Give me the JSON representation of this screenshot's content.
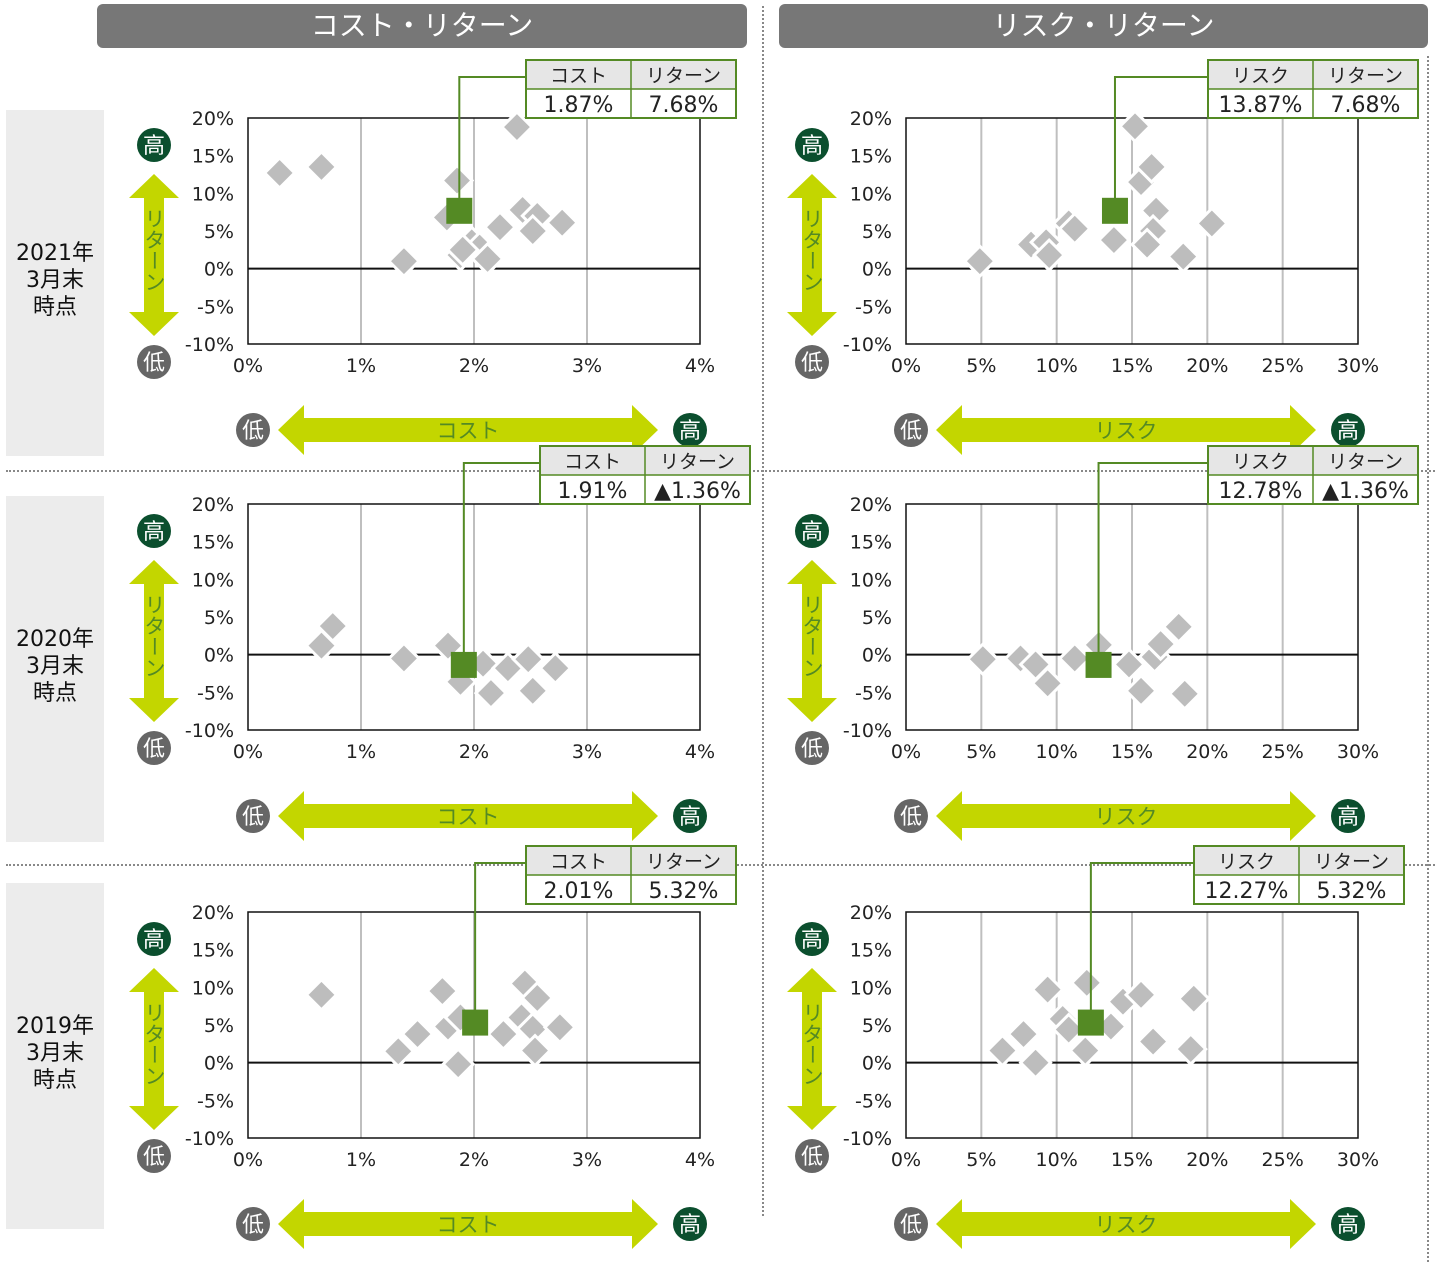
{
  "headers": {
    "cost_return": "コスト・リターン",
    "risk_return": "リスク・リターン"
  },
  "rows": [
    {
      "year": "2021年",
      "month": "3月末",
      "point": "時点"
    },
    {
      "year": "2020年",
      "month": "3月末",
      "point": "時点"
    },
    {
      "year": "2019年",
      "month": "3月末",
      "point": "時点"
    }
  ],
  "labels": {
    "high": "高",
    "low": "低",
    "return_axis": "リターン",
    "cost_axis": "コスト",
    "risk_axis": "リスク",
    "cost_col": "コスト",
    "risk_col": "リスク",
    "return_col": "リターン"
  },
  "colors": {
    "fund": "#548a24",
    "peers": "#bdbdbd",
    "arrow": "#c3d600",
    "badge_high": "#0b4f2e",
    "badge_low": "#666666",
    "grid": "#bfbfbf"
  },
  "y_ticks": [
    "20%",
    "15%",
    "10%",
    "5%",
    "0%",
    "-5%",
    "-10%"
  ],
  "cost_ticks": [
    "0%",
    "1%",
    "2%",
    "3%",
    "4%"
  ],
  "risk_ticks": [
    "0%",
    "5%",
    "10%",
    "15%",
    "20%",
    "25%",
    "30%"
  ],
  "chart_data": [
    {
      "type": "scatter",
      "panel": "cost",
      "row": 0,
      "xlim": [
        0,
        4
      ],
      "ylim": [
        -10,
        20
      ],
      "fund": {
        "x": 1.87,
        "y": 7.68,
        "x_label": "1.87%",
        "y_label": "7.68%"
      },
      "peers": [
        [
          0.28,
          12.7
        ],
        [
          0.65,
          13.5
        ],
        [
          1.85,
          11.7
        ],
        [
          2.38,
          18.8
        ],
        [
          1.76,
          6.8
        ],
        [
          2.23,
          5.5
        ],
        [
          2.43,
          7.8
        ],
        [
          2.56,
          7.0
        ],
        [
          2.78,
          6.1
        ],
        [
          2.52,
          5.0
        ],
        [
          1.38,
          1.0
        ],
        [
          1.88,
          1.8
        ],
        [
          1.98,
          3.5
        ],
        [
          2.05,
          2.8
        ],
        [
          2.12,
          1.3
        ],
        [
          1.9,
          2.5
        ]
      ]
    },
    {
      "type": "scatter",
      "panel": "risk",
      "row": 0,
      "xlim": [
        0,
        30
      ],
      "ylim": [
        -10,
        20
      ],
      "fund": {
        "x": 13.87,
        "y": 7.68,
        "x_label": "13.87%",
        "y_label": "7.68%"
      },
      "peers": [
        [
          4.9,
          1.0
        ],
        [
          8.3,
          3.2
        ],
        [
          9.3,
          3.5
        ],
        [
          9.5,
          1.8
        ],
        [
          10.8,
          6.0
        ],
        [
          11.2,
          5.3
        ],
        [
          13.8,
          3.8
        ],
        [
          15.2,
          18.9
        ],
        [
          15.6,
          11.5
        ],
        [
          16.3,
          13.5
        ],
        [
          16.6,
          7.7
        ],
        [
          16.4,
          5.0
        ],
        [
          16.0,
          3.2
        ],
        [
          18.4,
          1.6
        ],
        [
          20.3,
          6.0
        ]
      ]
    },
    {
      "type": "scatter",
      "panel": "cost",
      "row": 1,
      "xlim": [
        0,
        4
      ],
      "ylim": [
        -10,
        20
      ],
      "fund": {
        "x": 1.91,
        "y": -1.36,
        "x_label": "1.91%",
        "y_label": "▲1.36%"
      },
      "peers": [
        [
          0.65,
          1.2
        ],
        [
          0.75,
          3.8
        ],
        [
          1.38,
          -0.5
        ],
        [
          1.77,
          1.2
        ],
        [
          1.88,
          -3.6
        ],
        [
          2.08,
          -1.2
        ],
        [
          2.15,
          -5.1
        ],
        [
          2.3,
          -1.8
        ],
        [
          2.48,
          -0.6
        ],
        [
          2.52,
          -4.8
        ],
        [
          2.72,
          -1.8
        ]
      ]
    },
    {
      "type": "scatter",
      "panel": "risk",
      "row": 1,
      "xlim": [
        0,
        30
      ],
      "ylim": [
        -10,
        20
      ],
      "fund": {
        "x": 12.78,
        "y": -1.36,
        "x_label": "12.78%",
        "y_label": "▲1.36%"
      },
      "peers": [
        [
          5.1,
          -0.6
        ],
        [
          7.6,
          -0.5
        ],
        [
          8.6,
          -1.3
        ],
        [
          9.4,
          -3.8
        ],
        [
          11.2,
          -0.5
        ],
        [
          12.8,
          1.3
        ],
        [
          14.8,
          -1.3
        ],
        [
          15.6,
          -4.8
        ],
        [
          16.5,
          -0.3
        ],
        [
          16.9,
          1.4
        ],
        [
          18.1,
          3.7
        ],
        [
          18.5,
          -5.2
        ]
      ]
    },
    {
      "type": "scatter",
      "panel": "cost",
      "row": 2,
      "xlim": [
        0,
        4
      ],
      "ylim": [
        -10,
        20
      ],
      "fund": {
        "x": 2.01,
        "y": 5.32,
        "x_label": "2.01%",
        "y_label": "5.32%"
      },
      "peers": [
        [
          0.65,
          9.0
        ],
        [
          1.33,
          1.5
        ],
        [
          1.5,
          3.8
        ],
        [
          1.72,
          9.5
        ],
        [
          1.77,
          4.8
        ],
        [
          1.86,
          -0.2
        ],
        [
          1.88,
          6.0
        ],
        [
          2.26,
          3.8
        ],
        [
          2.42,
          6.0
        ],
        [
          2.45,
          10.5
        ],
        [
          2.56,
          8.6
        ],
        [
          2.52,
          4.5
        ],
        [
          2.54,
          1.6
        ],
        [
          2.76,
          4.7
        ]
      ]
    },
    {
      "type": "scatter",
      "panel": "risk",
      "row": 2,
      "xlim": [
        0,
        30
      ],
      "ylim": [
        -10,
        20
      ],
      "fund": {
        "x": 12.27,
        "y": 5.32,
        "x_label": "12.27%",
        "y_label": "5.32%"
      },
      "peers": [
        [
          6.4,
          1.6
        ],
        [
          7.8,
          3.8
        ],
        [
          8.6,
          0.0
        ],
        [
          9.4,
          9.7
        ],
        [
          10.4,
          5.8
        ],
        [
          10.8,
          4.4
        ],
        [
          12.0,
          10.6
        ],
        [
          11.9,
          1.6
        ],
        [
          13.6,
          4.8
        ],
        [
          14.4,
          8.1
        ],
        [
          15.6,
          9.0
        ],
        [
          16.4,
          2.8
        ],
        [
          18.9,
          1.8
        ],
        [
          19.1,
          8.5
        ]
      ]
    }
  ]
}
